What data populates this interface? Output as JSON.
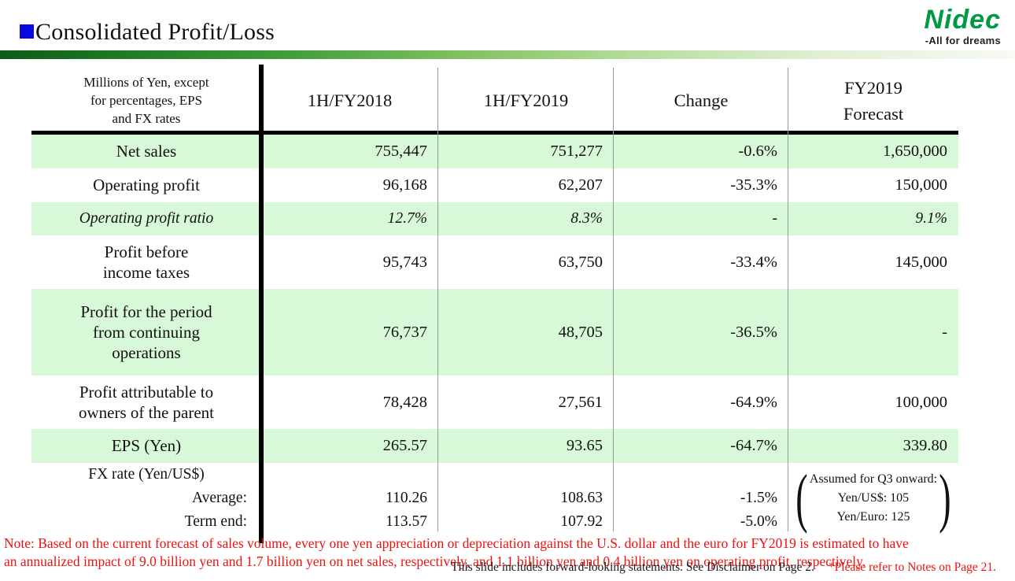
{
  "header": {
    "title": "Consolidated Profit/Loss",
    "logo_brand": "Nidec",
    "logo_tagline": "-All for dreams"
  },
  "colors": {
    "row_highlight": "#d8f9d8",
    "accent_bar_start": "#0c5c17",
    "accent_bar_end": "#f8fbf5",
    "title_bullet": "#0a0adf",
    "logo_green": "#009944",
    "note_red": "#ef1310"
  },
  "table": {
    "corner_label": "Millions of Yen, except\nfor percentages, EPS\nand FX rates",
    "columns": [
      "1H/FY2018",
      "1H/FY2019",
      "Change",
      "FY2019\nForecast"
    ],
    "rows": [
      {
        "label": "Net sales",
        "fy2018": "755,447",
        "fy2019": "751,277",
        "change": "-0.6%",
        "forecast": "1,650,000"
      },
      {
        "label": "Operating profit",
        "fy2018": "96,168",
        "fy2019": "62,207",
        "change": "-35.3%",
        "forecast": "150,000"
      },
      {
        "label": "Operating profit ratio",
        "fy2018": "12.7%",
        "fy2019": "8.3%",
        "change": "-",
        "forecast": "9.1%"
      },
      {
        "label": "Profit before\nincome taxes",
        "fy2018": "95,743",
        "fy2019": "63,750",
        "change": "-33.4%",
        "forecast": "145,000"
      },
      {
        "label": "Profit for the period\nfrom continuing\noperations",
        "fy2018": "76,737",
        "fy2019": "48,705",
        "change": "-36.5%",
        "forecast": "-"
      },
      {
        "label": "Profit attributable to\nowners of the parent",
        "fy2018": "78,428",
        "fy2019": "27,561",
        "change": "-64.9%",
        "forecast": "100,000"
      },
      {
        "label": "EPS (Yen)",
        "fy2018": "265.57",
        "fy2019": "93.65",
        "change": "-64.7%",
        "forecast": "339.80"
      }
    ],
    "fx": {
      "label": "FX rate (Yen/US$)",
      "rows": [
        {
          "label": "Average:",
          "fy2018": "110.26",
          "fy2019": "108.63",
          "change": "-1.5%"
        },
        {
          "label": "Term end:",
          "fy2018": "113.57",
          "fy2019": "107.92",
          "change": "-5.0%"
        }
      ],
      "forecast_note": "Assumed for Q3 onward:\nYen/US$: 105\nYen/Euro: 125",
      "paren_open": "(",
      "paren_close": ")"
    }
  },
  "notes": {
    "red_note": "Note: Based on the current forecast of sales volume, every one yen appreciation or depreciation against the U.S. dollar and the euro for FY2019 is estimated to have\nan annualized impact of  9.0 billion yen and 1.7 billion yen on net sales, respectively, and 1.1 billion yen and 0.4 billion yen on operating profit, respectively.",
    "disclaimer": "This slide includes forward-looking statements. See Disclaimer on Page 2.",
    "page_ref": "*Please refer to Notes on Page 21."
  }
}
